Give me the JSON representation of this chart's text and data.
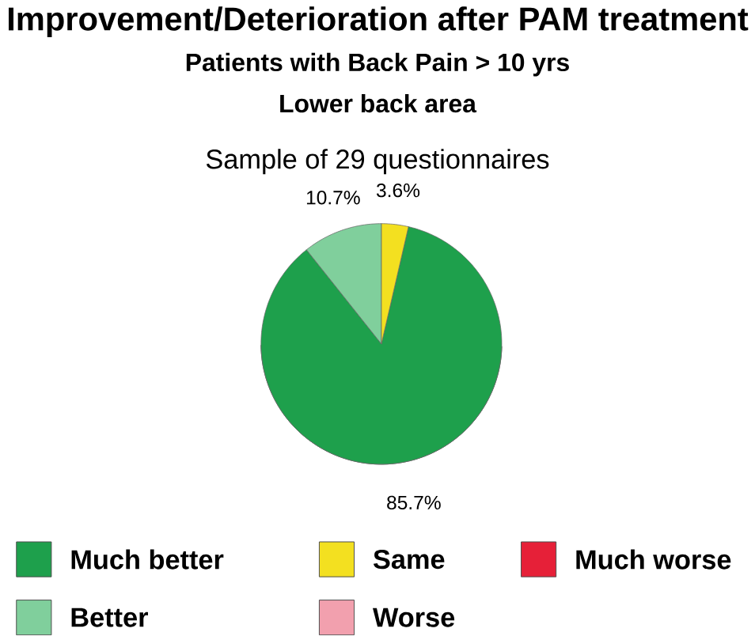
{
  "chart_data": {
    "type": "pie",
    "title": "Improvement/Deterioration after PAM treatment",
    "subtitle": "Patients with Back Pain > 10 yrs",
    "annotations": [
      "Lower back area",
      "Sample of 29 questionnaires"
    ],
    "categories": [
      "Much better",
      "Better",
      "Same",
      "Worse",
      "Much worse"
    ],
    "values": [
      85.7,
      10.7,
      3.6,
      0,
      0
    ],
    "colors": [
      "#1ea04c",
      "#80cf9c",
      "#f3e020",
      "#f2a0ae",
      "#e62038"
    ],
    "value_labels": [
      "85.7%",
      "10.7%",
      "3.6%",
      null,
      null
    ],
    "legend": "bottom"
  }
}
